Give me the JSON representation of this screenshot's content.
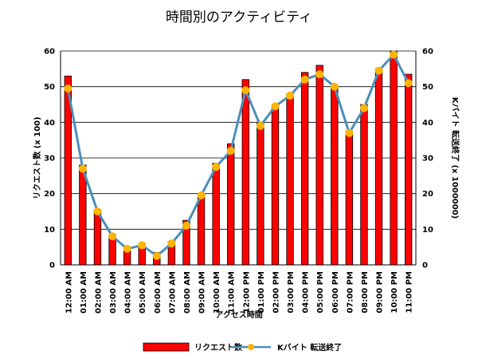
{
  "chart_data": {
    "type": "bar",
    "title": "時間別のアクティビティ",
    "xlabel": "アクセス時間",
    "ylabel_left": "リクエスト数 (x 100)",
    "ylabel_right": "Kバイト 転送終了 (x 1000000)",
    "ylim_left": [
      0,
      60
    ],
    "ylim_right": [
      0,
      60
    ],
    "yticks": [
      0,
      10,
      20,
      30,
      40,
      50,
      60
    ],
    "grid": true,
    "legend_position": "bottom",
    "categories": [
      "12:00 AM",
      "01:00 AM",
      "02:00 AM",
      "03:00 AM",
      "04:00 AM",
      "05:00 AM",
      "06:00 AM",
      "07:00 AM",
      "08:00 AM",
      "09:00 AM",
      "10:00 AM",
      "11:00 AM",
      "12:00 PM",
      "01:00 PM",
      "02:00 PM",
      "03:00 PM",
      "04:00 PM",
      "05:00 PM",
      "06:00 PM",
      "07:00 PM",
      "08:00 PM",
      "09:00 PM",
      "10:00 PM",
      "11:00 PM"
    ],
    "series": [
      {
        "name": "リクエスト数",
        "type": "bar",
        "axis": "left",
        "color": "#ff0000",
        "values": [
          53,
          28,
          15.5,
          8.5,
          4.5,
          6,
          3.5,
          6.5,
          12.5,
          20,
          28.5,
          34,
          52,
          40,
          44,
          48,
          54,
          56,
          50,
          37.5,
          45,
          55,
          60,
          53.5
        ]
      },
      {
        "name": "Kバイト 転送終了",
        "type": "line",
        "axis": "right",
        "color": "#4a8fb8",
        "marker_color": "#ffb400",
        "values": [
          49.5,
          27,
          15,
          8,
          4.5,
          5.5,
          2.5,
          6,
          11,
          19.5,
          27.5,
          32,
          49,
          39,
          44.5,
          47.5,
          52,
          53.5,
          50,
          37,
          44,
          54.5,
          59,
          51
        ]
      }
    ]
  }
}
